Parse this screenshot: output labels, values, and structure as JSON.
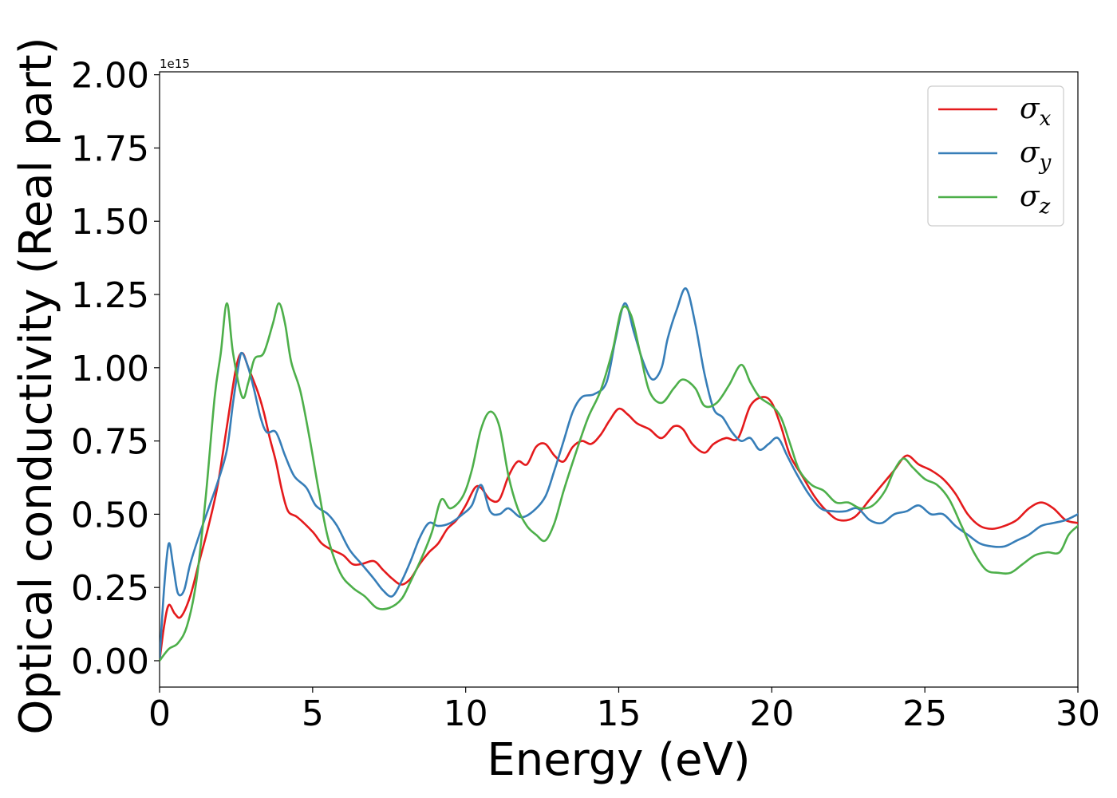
{
  "chart_data": {
    "type": "line",
    "title": "",
    "xlabel": "Energy (eV)",
    "ylabel": "Optical conductivity (Real part)",
    "y_offset_label": "1e15",
    "xlim": [
      0,
      30
    ],
    "ylim": [
      -0.09,
      2.01
    ],
    "x_ticks": [
      0,
      5,
      10,
      15,
      20,
      25,
      30
    ],
    "x_tick_labels": [
      "0",
      "5",
      "10",
      "15",
      "20",
      "25",
      "30"
    ],
    "y_ticks": [
      0,
      0.25,
      0.5,
      0.75,
      1.0,
      1.25,
      1.5,
      1.75,
      2.0
    ],
    "y_tick_labels": [
      "0.00",
      "0.25",
      "0.50",
      "0.75",
      "1.00",
      "1.25",
      "1.50",
      "1.75",
      "2.00"
    ],
    "grid": false,
    "legend_position": "top-right",
    "series": [
      {
        "name": "σx",
        "symbol": "σ",
        "subscript": "x",
        "color": "#e41a1c",
        "points": [
          [
            0,
            0
          ],
          [
            0.15,
            0.12
          ],
          [
            0.3,
            0.19
          ],
          [
            0.5,
            0.16
          ],
          [
            0.7,
            0.15
          ],
          [
            1.0,
            0.22
          ],
          [
            1.3,
            0.34
          ],
          [
            1.6,
            0.46
          ],
          [
            1.9,
            0.6
          ],
          [
            2.2,
            0.8
          ],
          [
            2.5,
            1.0
          ],
          [
            2.7,
            1.05
          ],
          [
            2.9,
            1.0
          ],
          [
            3.2,
            0.92
          ],
          [
            3.4,
            0.85
          ],
          [
            3.6,
            0.76
          ],
          [
            3.8,
            0.68
          ],
          [
            4.0,
            0.58
          ],
          [
            4.2,
            0.51
          ],
          [
            4.5,
            0.49
          ],
          [
            5.0,
            0.44
          ],
          [
            5.3,
            0.4
          ],
          [
            5.6,
            0.38
          ],
          [
            6.0,
            0.36
          ],
          [
            6.3,
            0.33
          ],
          [
            6.6,
            0.33
          ],
          [
            7.0,
            0.34
          ],
          [
            7.3,
            0.31
          ],
          [
            7.6,
            0.28
          ],
          [
            7.9,
            0.26
          ],
          [
            8.2,
            0.28
          ],
          [
            8.5,
            0.33
          ],
          [
            8.8,
            0.37
          ],
          [
            9.1,
            0.4
          ],
          [
            9.4,
            0.45
          ],
          [
            9.7,
            0.48
          ],
          [
            10.0,
            0.53
          ],
          [
            10.3,
            0.59
          ],
          [
            10.5,
            0.59
          ],
          [
            10.8,
            0.55
          ],
          [
            11.1,
            0.55
          ],
          [
            11.4,
            0.63
          ],
          [
            11.7,
            0.68
          ],
          [
            12.0,
            0.67
          ],
          [
            12.3,
            0.73
          ],
          [
            12.6,
            0.74
          ],
          [
            12.9,
            0.7
          ],
          [
            13.2,
            0.68
          ],
          [
            13.5,
            0.73
          ],
          [
            13.8,
            0.75
          ],
          [
            14.1,
            0.74
          ],
          [
            14.4,
            0.77
          ],
          [
            14.7,
            0.82
          ],
          [
            15.0,
            0.86
          ],
          [
            15.3,
            0.84
          ],
          [
            15.6,
            0.81
          ],
          [
            16.0,
            0.79
          ],
          [
            16.4,
            0.76
          ],
          [
            16.8,
            0.8
          ],
          [
            17.1,
            0.79
          ],
          [
            17.4,
            0.74
          ],
          [
            17.8,
            0.71
          ],
          [
            18.1,
            0.74
          ],
          [
            18.5,
            0.76
          ],
          [
            18.9,
            0.76
          ],
          [
            19.3,
            0.87
          ],
          [
            19.7,
            0.9
          ],
          [
            20.0,
            0.88
          ],
          [
            20.3,
            0.8
          ],
          [
            20.6,
            0.7
          ],
          [
            21.0,
            0.63
          ],
          [
            21.4,
            0.56
          ],
          [
            21.8,
            0.51
          ],
          [
            22.2,
            0.48
          ],
          [
            22.7,
            0.49
          ],
          [
            23.2,
            0.55
          ],
          [
            23.6,
            0.6
          ],
          [
            24.0,
            0.65
          ],
          [
            24.4,
            0.7
          ],
          [
            24.8,
            0.67
          ],
          [
            25.2,
            0.65
          ],
          [
            25.6,
            0.62
          ],
          [
            26.0,
            0.57
          ],
          [
            26.4,
            0.5
          ],
          [
            26.8,
            0.46
          ],
          [
            27.2,
            0.45
          ],
          [
            27.6,
            0.46
          ],
          [
            28.0,
            0.48
          ],
          [
            28.4,
            0.52
          ],
          [
            28.8,
            0.54
          ],
          [
            29.2,
            0.52
          ],
          [
            29.6,
            0.48
          ],
          [
            30.0,
            0.47
          ]
        ]
      },
      {
        "name": "σy",
        "symbol": "σ",
        "subscript": "y",
        "color": "#377eb8",
        "points": [
          [
            0,
            0
          ],
          [
            0.15,
            0.25
          ],
          [
            0.3,
            0.4
          ],
          [
            0.45,
            0.32
          ],
          [
            0.6,
            0.23
          ],
          [
            0.8,
            0.24
          ],
          [
            1.0,
            0.33
          ],
          [
            1.3,
            0.43
          ],
          [
            1.6,
            0.52
          ],
          [
            1.9,
            0.61
          ],
          [
            2.2,
            0.72
          ],
          [
            2.4,
            0.88
          ],
          [
            2.6,
            1.02
          ],
          [
            2.7,
            1.05
          ],
          [
            2.9,
            1.0
          ],
          [
            3.1,
            0.92
          ],
          [
            3.3,
            0.83
          ],
          [
            3.5,
            0.78
          ],
          [
            3.8,
            0.78
          ],
          [
            4.1,
            0.7
          ],
          [
            4.4,
            0.63
          ],
          [
            4.8,
            0.59
          ],
          [
            5.1,
            0.53
          ],
          [
            5.5,
            0.5
          ],
          [
            5.8,
            0.46
          ],
          [
            6.2,
            0.38
          ],
          [
            6.6,
            0.33
          ],
          [
            7.0,
            0.28
          ],
          [
            7.3,
            0.24
          ],
          [
            7.6,
            0.22
          ],
          [
            7.9,
            0.27
          ],
          [
            8.2,
            0.34
          ],
          [
            8.5,
            0.42
          ],
          [
            8.8,
            0.47
          ],
          [
            9.1,
            0.46
          ],
          [
            9.5,
            0.47
          ],
          [
            9.9,
            0.5
          ],
          [
            10.2,
            0.53
          ],
          [
            10.5,
            0.6
          ],
          [
            10.8,
            0.51
          ],
          [
            11.1,
            0.5
          ],
          [
            11.4,
            0.52
          ],
          [
            11.8,
            0.49
          ],
          [
            12.2,
            0.51
          ],
          [
            12.6,
            0.56
          ],
          [
            12.9,
            0.65
          ],
          [
            13.2,
            0.75
          ],
          [
            13.5,
            0.85
          ],
          [
            13.8,
            0.9
          ],
          [
            14.2,
            0.91
          ],
          [
            14.6,
            0.95
          ],
          [
            14.9,
            1.1
          ],
          [
            15.2,
            1.22
          ],
          [
            15.5,
            1.12
          ],
          [
            15.8,
            1.02
          ],
          [
            16.1,
            0.96
          ],
          [
            16.4,
            1.0
          ],
          [
            16.6,
            1.1
          ],
          [
            16.9,
            1.2
          ],
          [
            17.2,
            1.27
          ],
          [
            17.5,
            1.15
          ],
          [
            17.8,
            0.98
          ],
          [
            18.1,
            0.86
          ],
          [
            18.4,
            0.83
          ],
          [
            18.7,
            0.78
          ],
          [
            19.0,
            0.75
          ],
          [
            19.3,
            0.76
          ],
          [
            19.6,
            0.72
          ],
          [
            19.9,
            0.74
          ],
          [
            20.2,
            0.76
          ],
          [
            20.5,
            0.7
          ],
          [
            20.8,
            0.64
          ],
          [
            21.2,
            0.57
          ],
          [
            21.6,
            0.52
          ],
          [
            22.0,
            0.51
          ],
          [
            22.4,
            0.51
          ],
          [
            22.8,
            0.52
          ],
          [
            23.2,
            0.48
          ],
          [
            23.6,
            0.47
          ],
          [
            24.0,
            0.5
          ],
          [
            24.4,
            0.51
          ],
          [
            24.8,
            0.53
          ],
          [
            25.2,
            0.5
          ],
          [
            25.6,
            0.5
          ],
          [
            26.0,
            0.46
          ],
          [
            26.4,
            0.43
          ],
          [
            26.8,
            0.4
          ],
          [
            27.2,
            0.39
          ],
          [
            27.6,
            0.39
          ],
          [
            28.0,
            0.41
          ],
          [
            28.4,
            0.43
          ],
          [
            28.8,
            0.46
          ],
          [
            29.2,
            0.47
          ],
          [
            29.6,
            0.48
          ],
          [
            30.0,
            0.5
          ]
        ]
      },
      {
        "name": "σz",
        "symbol": "σ",
        "subscript": "z",
        "color": "#4daf4a",
        "points": [
          [
            0,
            0
          ],
          [
            0.3,
            0.04
          ],
          [
            0.6,
            0.06
          ],
          [
            0.9,
            0.12
          ],
          [
            1.2,
            0.27
          ],
          [
            1.5,
            0.55
          ],
          [
            1.8,
            0.9
          ],
          [
            2.0,
            1.05
          ],
          [
            2.2,
            1.22
          ],
          [
            2.4,
            1.05
          ],
          [
            2.7,
            0.9
          ],
          [
            2.9,
            0.95
          ],
          [
            3.1,
            1.03
          ],
          [
            3.4,
            1.05
          ],
          [
            3.7,
            1.15
          ],
          [
            3.9,
            1.22
          ],
          [
            4.1,
            1.15
          ],
          [
            4.3,
            1.02
          ],
          [
            4.6,
            0.92
          ],
          [
            4.9,
            0.76
          ],
          [
            5.2,
            0.58
          ],
          [
            5.5,
            0.42
          ],
          [
            5.9,
            0.3
          ],
          [
            6.3,
            0.25
          ],
          [
            6.7,
            0.22
          ],
          [
            7.1,
            0.18
          ],
          [
            7.5,
            0.18
          ],
          [
            7.9,
            0.21
          ],
          [
            8.2,
            0.27
          ],
          [
            8.6,
            0.36
          ],
          [
            8.9,
            0.44
          ],
          [
            9.2,
            0.55
          ],
          [
            9.5,
            0.52
          ],
          [
            9.9,
            0.56
          ],
          [
            10.2,
            0.65
          ],
          [
            10.5,
            0.79
          ],
          [
            10.8,
            0.85
          ],
          [
            11.1,
            0.8
          ],
          [
            11.4,
            0.63
          ],
          [
            11.7,
            0.52
          ],
          [
            12.0,
            0.46
          ],
          [
            12.3,
            0.43
          ],
          [
            12.6,
            0.41
          ],
          [
            12.9,
            0.47
          ],
          [
            13.2,
            0.58
          ],
          [
            13.6,
            0.71
          ],
          [
            14.0,
            0.83
          ],
          [
            14.4,
            0.92
          ],
          [
            14.8,
            1.06
          ],
          [
            15.1,
            1.2
          ],
          [
            15.4,
            1.18
          ],
          [
            15.7,
            1.05
          ],
          [
            16.0,
            0.92
          ],
          [
            16.4,
            0.88
          ],
          [
            16.8,
            0.93
          ],
          [
            17.1,
            0.96
          ],
          [
            17.5,
            0.93
          ],
          [
            17.8,
            0.87
          ],
          [
            18.2,
            0.88
          ],
          [
            18.6,
            0.94
          ],
          [
            19.0,
            1.01
          ],
          [
            19.3,
            0.95
          ],
          [
            19.6,
            0.9
          ],
          [
            20.0,
            0.87
          ],
          [
            20.3,
            0.83
          ],
          [
            20.6,
            0.74
          ],
          [
            20.9,
            0.65
          ],
          [
            21.3,
            0.6
          ],
          [
            21.7,
            0.58
          ],
          [
            22.1,
            0.54
          ],
          [
            22.5,
            0.54
          ],
          [
            22.9,
            0.52
          ],
          [
            23.3,
            0.53
          ],
          [
            23.7,
            0.58
          ],
          [
            24.0,
            0.65
          ],
          [
            24.3,
            0.69
          ],
          [
            24.6,
            0.66
          ],
          [
            25.0,
            0.62
          ],
          [
            25.4,
            0.6
          ],
          [
            25.8,
            0.55
          ],
          [
            26.2,
            0.46
          ],
          [
            26.6,
            0.37
          ],
          [
            27.0,
            0.31
          ],
          [
            27.4,
            0.3
          ],
          [
            27.8,
            0.3
          ],
          [
            28.2,
            0.33
          ],
          [
            28.6,
            0.36
          ],
          [
            29.0,
            0.37
          ],
          [
            29.4,
            0.37
          ],
          [
            29.7,
            0.43
          ],
          [
            30.0,
            0.46
          ]
        ]
      }
    ]
  }
}
